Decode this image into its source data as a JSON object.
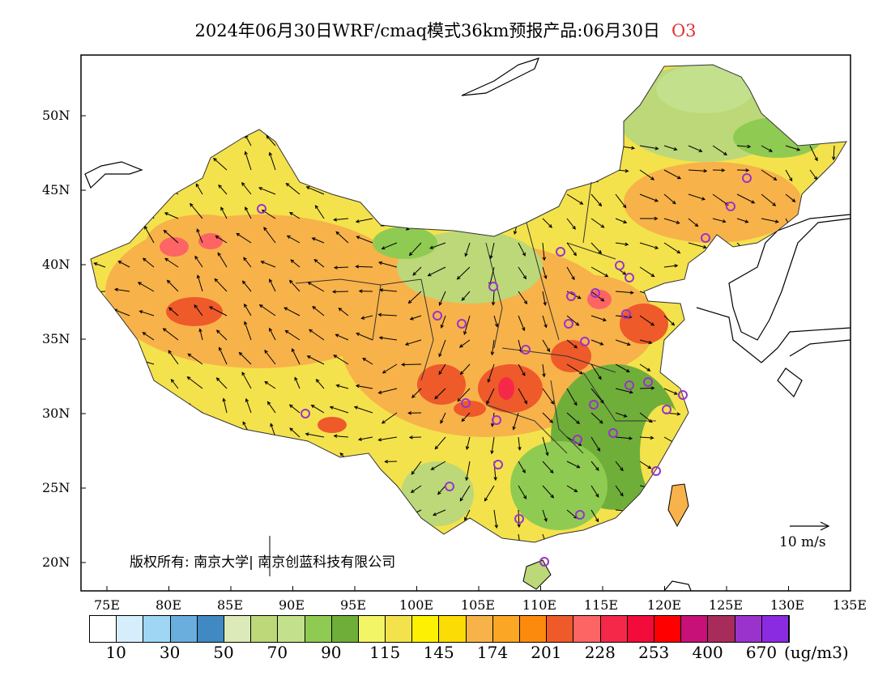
{
  "title": {
    "main": "2024年06月30日WRF/cmaq模式36km预报产品:06月30日",
    "pollutant": "O3"
  },
  "axes": {
    "lat_labels": [
      "50N",
      "45N",
      "40N",
      "35N",
      "30N",
      "25N",
      "20N"
    ],
    "lon_labels": [
      "75E",
      "80E",
      "85E",
      "90E",
      "95E",
      "100E",
      "105E",
      "110E",
      "115E",
      "120E",
      "125E",
      "130E",
      "135E"
    ]
  },
  "copyright": "版权所有: 南京大学| 南京创蓝科技有限公司",
  "wind_vector_label": "10 m/s",
  "legend": {
    "colors": [
      "#ffffff",
      "#d6eefb",
      "#9fd6f4",
      "#6aaede",
      "#4089c2",
      "#dbeab8",
      "#bcd878",
      "#c3e08d",
      "#8fcb52",
      "#70ae3a",
      "#f2f566",
      "#f4e24c",
      "#fdf002",
      "#fbdc05",
      "#f8b24a",
      "#fba624",
      "#fc8a0c",
      "#ee5a2a",
      "#fd6464",
      "#f5284a",
      "#f20b3b",
      "#ff0000",
      "#c81178",
      "#a82c5a",
      "#9933cc",
      "#8a2be2"
    ],
    "tick_labels": [
      "10",
      "30",
      "50",
      "70",
      "90",
      "115",
      "145",
      "174",
      "201",
      "228",
      "253",
      "400",
      "670"
    ],
    "unit": "(ug/m3)"
  },
  "map_colors": {
    "moderate": "#f4e24c",
    "orange": "#f8b24a",
    "high": "#ee5a2a",
    "peak": "#f5284a",
    "green": "#bcd878",
    "dark_green": "#70ae3a",
    "light_green": "#dbeab8"
  },
  "stations": 32
}
